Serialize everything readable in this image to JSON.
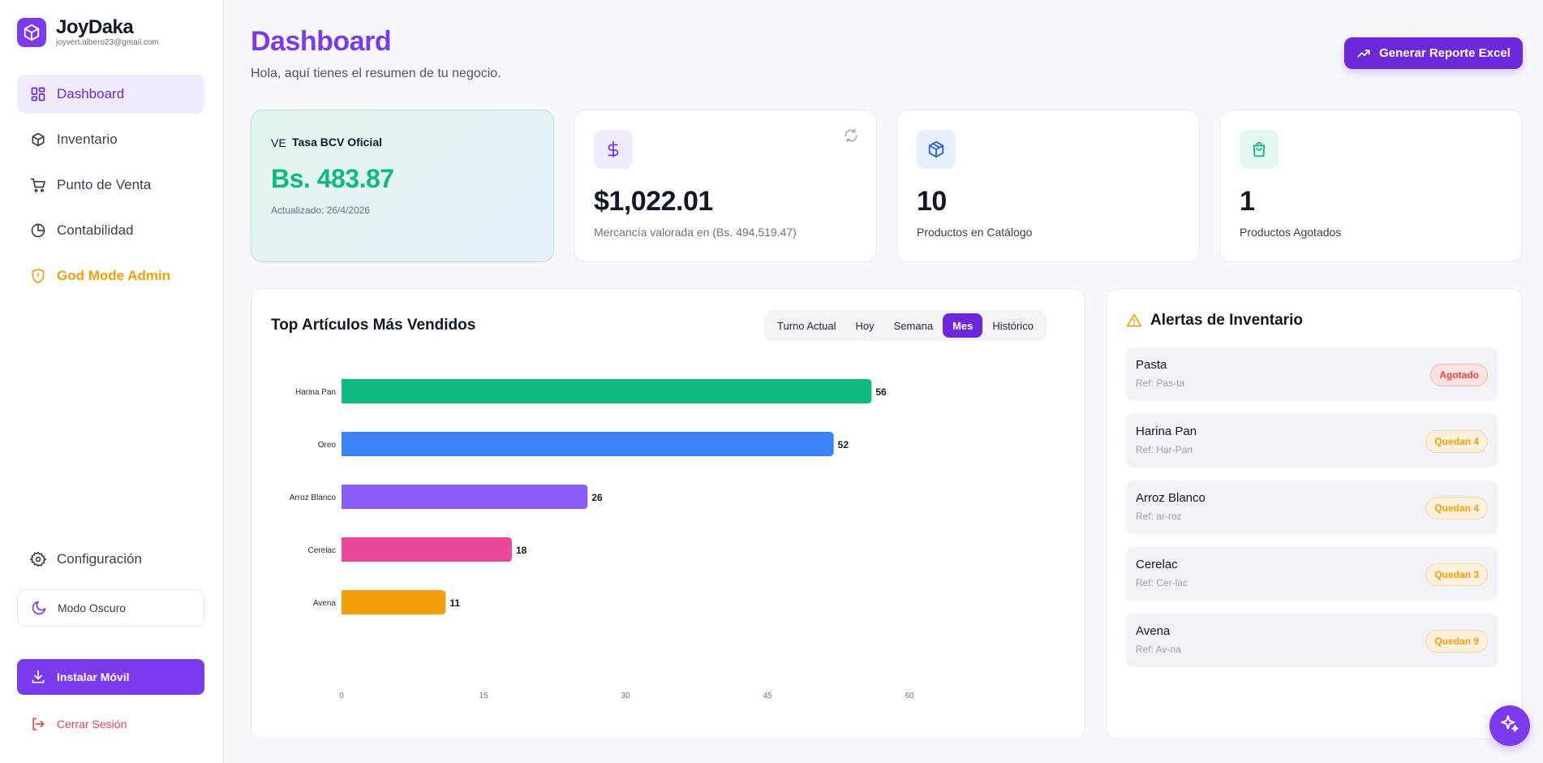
{
  "brand": {
    "name": "JoyDaka",
    "email": "joyvert.albero23@gmail.com",
    "icon": "cube-icon"
  },
  "sidebar": {
    "items": [
      {
        "label": "Dashboard",
        "icon": "dashboard-grid-icon",
        "active": true
      },
      {
        "label": "Inventario",
        "icon": "box-tag-icon"
      },
      {
        "label": "Punto de Venta",
        "icon": "cart-icon"
      },
      {
        "label": "Contabilidad",
        "icon": "pie-chart-icon"
      },
      {
        "label": "God Mode Admin",
        "icon": "shield-icon"
      }
    ],
    "config_label": "Configuración",
    "dark_mode_label": "Modo Oscuro",
    "install_label": "Instalar Móvil",
    "logout_label": "Cerrar Sesión"
  },
  "header": {
    "title": "Dashboard",
    "subtitle": "Hola, aquí tienes el resumen de tu negocio.",
    "report_button": "Generar Reporte Excel"
  },
  "bcv": {
    "flag": "VE",
    "label": "Tasa BCV Oficial",
    "value": "Bs. 483.87",
    "updated": "Actualizado: 26/4/2026"
  },
  "stats": [
    {
      "value": "$1,022.01",
      "label": "Mercancía valorada en (Bs. 494,519.47)",
      "icon": "dollar-icon"
    },
    {
      "value": "10",
      "label": "Productos en Catálogo",
      "icon": "package-icon"
    },
    {
      "value": "1",
      "label": "Productos Agotados",
      "icon": "shopping-bag-icon"
    }
  ],
  "chart_section": {
    "title": "Top Artículos Más Vendidos",
    "filters": [
      "Turno Actual",
      "Hoy",
      "Semana",
      "Mes",
      "Histórico"
    ],
    "active_filter": "Mes"
  },
  "chart_data": {
    "type": "bar",
    "orientation": "horizontal",
    "categories": [
      "Harina Pan",
      "Oreo",
      "Arroz Blanco",
      "Cerelac",
      "Avena"
    ],
    "values": [
      56,
      52,
      26,
      18,
      11
    ],
    "colors": [
      "#10b981",
      "#3b82f6",
      "#8b5cf6",
      "#ec4899",
      "#f59e0b"
    ],
    "xlim": [
      0,
      60
    ],
    "xticks": [
      0,
      15,
      30,
      45,
      60
    ],
    "grid": false,
    "legend": "none"
  },
  "alerts": {
    "title": "Alertas de Inventario",
    "items": [
      {
        "name": "Pasta",
        "ref": "Ref: Pas-ta",
        "badge": "Agotado",
        "status": "out"
      },
      {
        "name": "Harina Pan",
        "ref": "Ref: Har-Pan",
        "badge": "Quedan 4",
        "status": "low"
      },
      {
        "name": "Arroz Blanco",
        "ref": "Ref: ar-roz",
        "badge": "Quedan 4",
        "status": "low"
      },
      {
        "name": "Cerelac",
        "ref": "Ref: Cer-lac",
        "badge": "Quedan 3",
        "status": "low"
      },
      {
        "name": "Avena",
        "ref": "Ref: Av-na",
        "badge": "Quedan 9",
        "status": "low"
      }
    ]
  },
  "fab": {
    "icon": "sparkles-icon"
  },
  "colors": {
    "primary": "#7c3aed",
    "success": "#10b981",
    "warning": "#f59e0b",
    "danger": "#ef4444"
  }
}
